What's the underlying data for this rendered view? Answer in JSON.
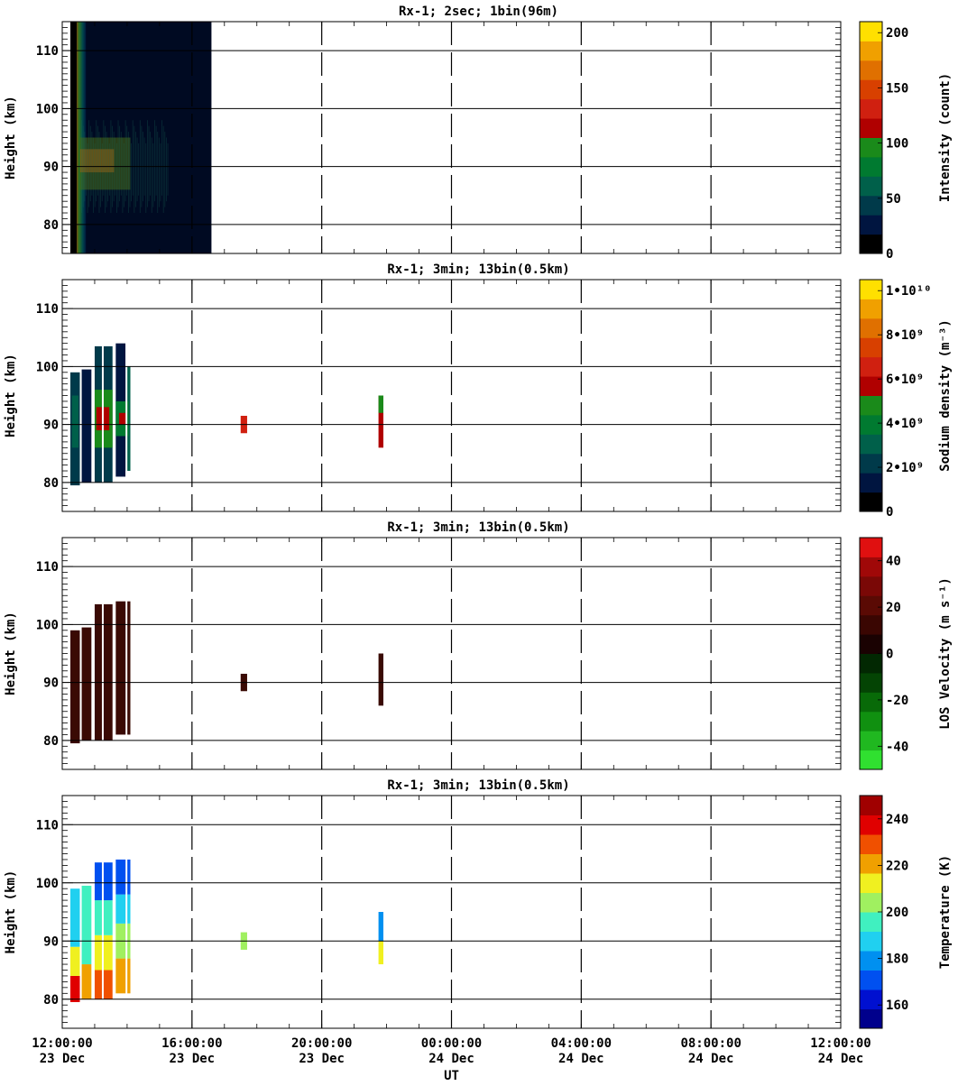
{
  "x_axis": {
    "label": "UT",
    "ticks": [
      {
        "time": "12:00:00",
        "date": "23 Dec"
      },
      {
        "time": "16:00:00",
        "date": "23 Dec"
      },
      {
        "time": "20:00:00",
        "date": "23 Dec"
      },
      {
        "time": "00:00:00",
        "date": "24 Dec"
      },
      {
        "time": "04:00:00",
        "date": "24 Dec"
      },
      {
        "time": "08:00:00",
        "date": "24 Dec"
      },
      {
        "time": "12:00:00",
        "date": "24 Dec"
      }
    ],
    "range_hours": [
      0,
      24
    ]
  },
  "chart_data": [
    {
      "type": "heatmap",
      "title": "Rx-1;  2sec; 1bin(96m)",
      "ylabel": "Height (km)",
      "ylim": [
        75,
        115
      ],
      "yticks": [
        "80",
        "90",
        "100",
        "110"
      ],
      "colorbar": {
        "label": "Intensity (count)",
        "ticks": [
          "0",
          "50",
          "100",
          "150",
          "200"
        ],
        "range": [
          0,
          210
        ],
        "colors": [
          "#000000",
          "#001540",
          "#003a4a",
          "#00604a",
          "#007a30",
          "#1a8a1a",
          "#b00000",
          "#d02010",
          "#d84000",
          "#e07000",
          "#f0a000",
          "#ffe000"
        ]
      },
      "data_extent_hours": [
        0.25,
        4.6
      ],
      "peak_region_hours": [
        0.25,
        0.55
      ],
      "background_color": "#000a22"
    },
    {
      "type": "heatmap",
      "title": "Rx-1; 3min; 13bin(0.5km)",
      "ylabel": "Height (km)",
      "ylim": [
        75,
        115
      ],
      "yticks": [
        "80",
        "90",
        "100",
        "110"
      ],
      "colorbar": {
        "label": "Sodium density (m⁻³)",
        "ticks": [
          "0",
          "2•10⁹",
          "4•10⁹",
          "6•10⁹",
          "8•10⁹",
          "1•10¹⁰"
        ],
        "range": [
          0,
          10500000000.0
        ],
        "colors": [
          "#000000",
          "#001540",
          "#003a4a",
          "#00604a",
          "#007a30",
          "#1a8a1a",
          "#b00000",
          "#d02010",
          "#d84000",
          "#e07000",
          "#f0a000",
          "#ffe000"
        ]
      },
      "segments": [
        {
          "t0": 0.25,
          "t1": 0.55,
          "h0": 79.5,
          "h1": 99,
          "fill": "#003a4a"
        },
        {
          "t0": 0.6,
          "t1": 0.9,
          "h0": 80,
          "h1": 99.5,
          "fill": "#001540"
        },
        {
          "t0": 1.0,
          "t1": 1.55,
          "h0": 80,
          "h1": 103.5,
          "fill": "#003a4a"
        },
        {
          "t0": 1.65,
          "t1": 1.95,
          "h0": 81,
          "h1": 104,
          "fill": "#001540"
        },
        {
          "t0": 1.95,
          "t1": 2.1,
          "h0": 82,
          "h1": 100,
          "fill": "#00604a"
        },
        {
          "t0": 1.0,
          "t1": 1.55,
          "h0": 86,
          "h1": 96,
          "fill": "#1a8a1a"
        },
        {
          "t0": 1.05,
          "t1": 1.45,
          "h0": 89,
          "h1": 93,
          "fill": "#b00000"
        },
        {
          "t0": 1.65,
          "t1": 2.05,
          "h0": 88,
          "h1": 94,
          "fill": "#007a30"
        },
        {
          "t0": 1.75,
          "t1": 2.0,
          "h0": 90,
          "h1": 92,
          "fill": "#b00000"
        },
        {
          "t0": 0.3,
          "t1": 0.5,
          "h0": 86,
          "h1": 95,
          "fill": "#00604a"
        },
        {
          "t0": 5.5,
          "t1": 5.7,
          "h0": 88.5,
          "h1": 91.5,
          "fill": "#d02010"
        },
        {
          "t0": 9.75,
          "t1": 9.9,
          "h0": 86,
          "h1": 95,
          "fill": "#b00000"
        },
        {
          "t0": 9.75,
          "t1": 9.9,
          "h0": 92,
          "h1": 95,
          "fill": "#1a8a1a"
        }
      ]
    },
    {
      "type": "heatmap",
      "title": "Rx-1; 3min; 13bin(0.5km)",
      "ylabel": "Height (km)",
      "ylim": [
        75,
        115
      ],
      "yticks": [
        "80",
        "90",
        "100",
        "110"
      ],
      "colorbar": {
        "label": "LOS Velocity (m s⁻¹)",
        "ticks": [
          "-40",
          "-20",
          "0",
          "20",
          "40"
        ],
        "range": [
          -50,
          50
        ],
        "colors": [
          "#30e030",
          "#20b820",
          "#109010",
          "#086a08",
          "#044404",
          "#022802",
          "#1a0202",
          "#3a0602",
          "#5a0a04",
          "#7a0806",
          "#a00808",
          "#e01010"
        ]
      },
      "segments": [
        {
          "t0": 0.25,
          "t1": 0.55,
          "h0": 79.5,
          "h1": 99,
          "fill": "#3a0a04"
        },
        {
          "t0": 0.6,
          "t1": 0.9,
          "h0": 80,
          "h1": 99.5,
          "fill": "#3a0a04"
        },
        {
          "t0": 1.0,
          "t1": 1.55,
          "h0": 80,
          "h1": 103.5,
          "fill": "#3a0a04"
        },
        {
          "t0": 1.65,
          "t1": 2.1,
          "h0": 81,
          "h1": 104,
          "fill": "#3a0a04"
        },
        {
          "t0": 5.5,
          "t1": 5.7,
          "h0": 88.5,
          "h1": 91.5,
          "fill": "#3a0a04"
        },
        {
          "t0": 9.75,
          "t1": 9.9,
          "h0": 86,
          "h1": 95,
          "fill": "#3a0a04"
        }
      ]
    },
    {
      "type": "heatmap",
      "title": "Rx-1; 3min; 13bin(0.5km)",
      "ylabel": "Height (km)",
      "ylim": [
        75,
        115
      ],
      "yticks": [
        "80",
        "90",
        "100",
        "110"
      ],
      "colorbar": {
        "label": "Temperature (K)",
        "ticks": [
          "160",
          "180",
          "200",
          "220",
          "240"
        ],
        "range": [
          150,
          250
        ],
        "colors": [
          "#00008c",
          "#0010d0",
          "#0050f0",
          "#0090f0",
          "#20d0f0",
          "#40f0c0",
          "#a0f060",
          "#f0f020",
          "#f0a000",
          "#f05000",
          "#e00000",
          "#a00000"
        ]
      },
      "segments": [
        {
          "t0": 0.25,
          "t1": 0.55,
          "h0": 79.5,
          "h1": 84,
          "fill": "#e00000"
        },
        {
          "t0": 0.25,
          "t1": 0.55,
          "h0": 84,
          "h1": 89,
          "fill": "#f0f020"
        },
        {
          "t0": 0.25,
          "t1": 0.55,
          "h0": 89,
          "h1": 99,
          "fill": "#20d0f0"
        },
        {
          "t0": 0.6,
          "t1": 0.9,
          "h0": 80,
          "h1": 86,
          "fill": "#f0a000"
        },
        {
          "t0": 0.6,
          "t1": 0.9,
          "h0": 86,
          "h1": 99.5,
          "fill": "#40f0c0"
        },
        {
          "t0": 1.0,
          "t1": 1.55,
          "h0": 80,
          "h1": 85,
          "fill": "#f05000"
        },
        {
          "t0": 1.0,
          "t1": 1.55,
          "h0": 85,
          "h1": 91,
          "fill": "#f0f020"
        },
        {
          "t0": 1.0,
          "t1": 1.55,
          "h0": 91,
          "h1": 97,
          "fill": "#40f0c0"
        },
        {
          "t0": 1.0,
          "t1": 1.55,
          "h0": 97,
          "h1": 103.5,
          "fill": "#0050f0"
        },
        {
          "t0": 1.65,
          "t1": 2.1,
          "h0": 81,
          "h1": 87,
          "fill": "#f0a000"
        },
        {
          "t0": 1.65,
          "t1": 2.1,
          "h0": 87,
          "h1": 93,
          "fill": "#a0f060"
        },
        {
          "t0": 1.65,
          "t1": 2.1,
          "h0": 93,
          "h1": 98,
          "fill": "#20d0f0"
        },
        {
          "t0": 1.65,
          "t1": 2.1,
          "h0": 98,
          "h1": 104,
          "fill": "#0050f0"
        },
        {
          "t0": 5.5,
          "t1": 5.7,
          "h0": 88.5,
          "h1": 91.5,
          "fill": "#a0f060"
        },
        {
          "t0": 9.75,
          "t1": 9.9,
          "h0": 86,
          "h1": 90,
          "fill": "#f0f020"
        },
        {
          "t0": 9.75,
          "t1": 9.9,
          "h0": 90,
          "h1": 95,
          "fill": "#0090f0"
        }
      ]
    }
  ]
}
